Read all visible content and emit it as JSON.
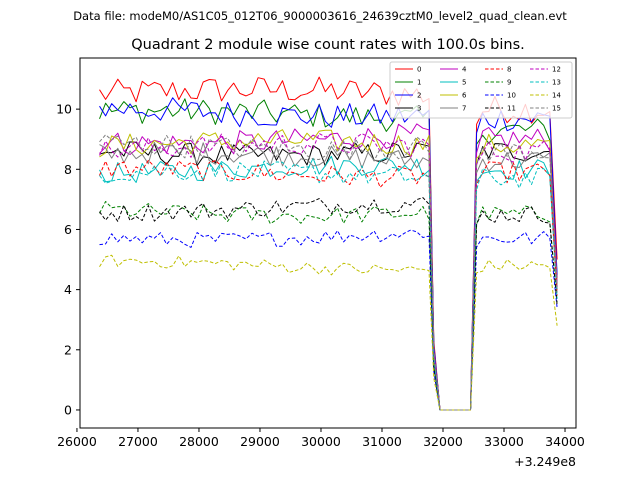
{
  "chart_data": {
    "type": "line",
    "suptitle": "Data file: modeM0/AS1C05_012T06_9000003616_24639cztM0_level2_quad_clean.evt",
    "title": "Quadrant 2 module wise count rates with 100.0s bins.",
    "xlabel": "",
    "ylabel": "",
    "x_offset_label": "+3.249e8",
    "xlim": [
      26050,
      34180
    ],
    "ylim": [
      -0.6,
      11.7
    ],
    "x_ticks": [
      26000,
      27000,
      28000,
      29000,
      30000,
      31000,
      32000,
      33000,
      34000
    ],
    "x_tick_labels": [
      "26000",
      "27000",
      "28000",
      "29000",
      "30000",
      "31000",
      "32000",
      "33000",
      "34000"
    ],
    "y_ticks": [
      0,
      2,
      4,
      6,
      8,
      10
    ],
    "y_tick_labels": [
      "0",
      "2",
      "4",
      "6",
      "8",
      "10"
    ],
    "x_start": 26370,
    "x_step": 100,
    "gap": {
      "drop": 31800,
      "low_start": 31850,
      "zero_start": 31950,
      "zero_end": 32450,
      "recover": 32550
    },
    "x_end": 33870,
    "legend_loc": "upper right",
    "series": [
      {
        "name": "0",
        "color": "#ff0000",
        "style": "solid",
        "level": 10.5,
        "post": 10.0,
        "end": 5.0
      },
      {
        "name": "1",
        "color": "#008000",
        "style": "solid",
        "level": 9.8,
        "post": 9.3,
        "end": 4.4
      },
      {
        "name": "2",
        "color": "#0000ff",
        "style": "solid",
        "level": 9.9,
        "post": 9.7,
        "end": 4.5
      },
      {
        "name": "3",
        "color": "#000000",
        "style": "solid",
        "level": 8.6,
        "post": 8.6,
        "end": 4.2
      },
      {
        "name": "4",
        "color": "#bf00bf",
        "style": "solid",
        "level": 9.0,
        "post": 9.0,
        "end": 4.3
      },
      {
        "name": "5",
        "color": "#00bfbf",
        "style": "solid",
        "level": 8.0,
        "post": 8.0,
        "end": 4.0
      },
      {
        "name": "6",
        "color": "#bfbf00",
        "style": "solid",
        "level": 8.8,
        "post": 8.8,
        "end": 4.1
      },
      {
        "name": "7",
        "color": "#808080",
        "style": "solid",
        "level": 8.4,
        "post": 8.3,
        "end": 4.0
      },
      {
        "name": "8",
        "color": "#ff0000",
        "style": "dashed",
        "level": 7.9,
        "post": 7.9,
        "end": 3.8
      },
      {
        "name": "9",
        "color": "#008000",
        "style": "dashed",
        "level": 6.6,
        "post": 6.5,
        "end": 3.6
      },
      {
        "name": "10",
        "color": "#0000ff",
        "style": "dashed",
        "level": 5.8,
        "post": 5.7,
        "end": 3.4
      },
      {
        "name": "11",
        "color": "#000000",
        "style": "dashed",
        "level": 6.7,
        "post": 6.5,
        "end": 3.5
      },
      {
        "name": "12",
        "color": "#bf00bf",
        "style": "dashed",
        "level": 8.7,
        "post": 8.6,
        "end": 4.1
      },
      {
        "name": "13",
        "color": "#00bfbf",
        "style": "dashed",
        "level": 7.8,
        "post": 7.7,
        "end": 3.7
      },
      {
        "name": "14",
        "color": "#bfbf00",
        "style": "dashed",
        "level": 4.8,
        "post": 4.8,
        "end": 2.8
      },
      {
        "name": "15",
        "color": "#808080",
        "style": "dashed",
        "level": 8.8,
        "post": 8.6,
        "end": 3.9
      }
    ]
  }
}
